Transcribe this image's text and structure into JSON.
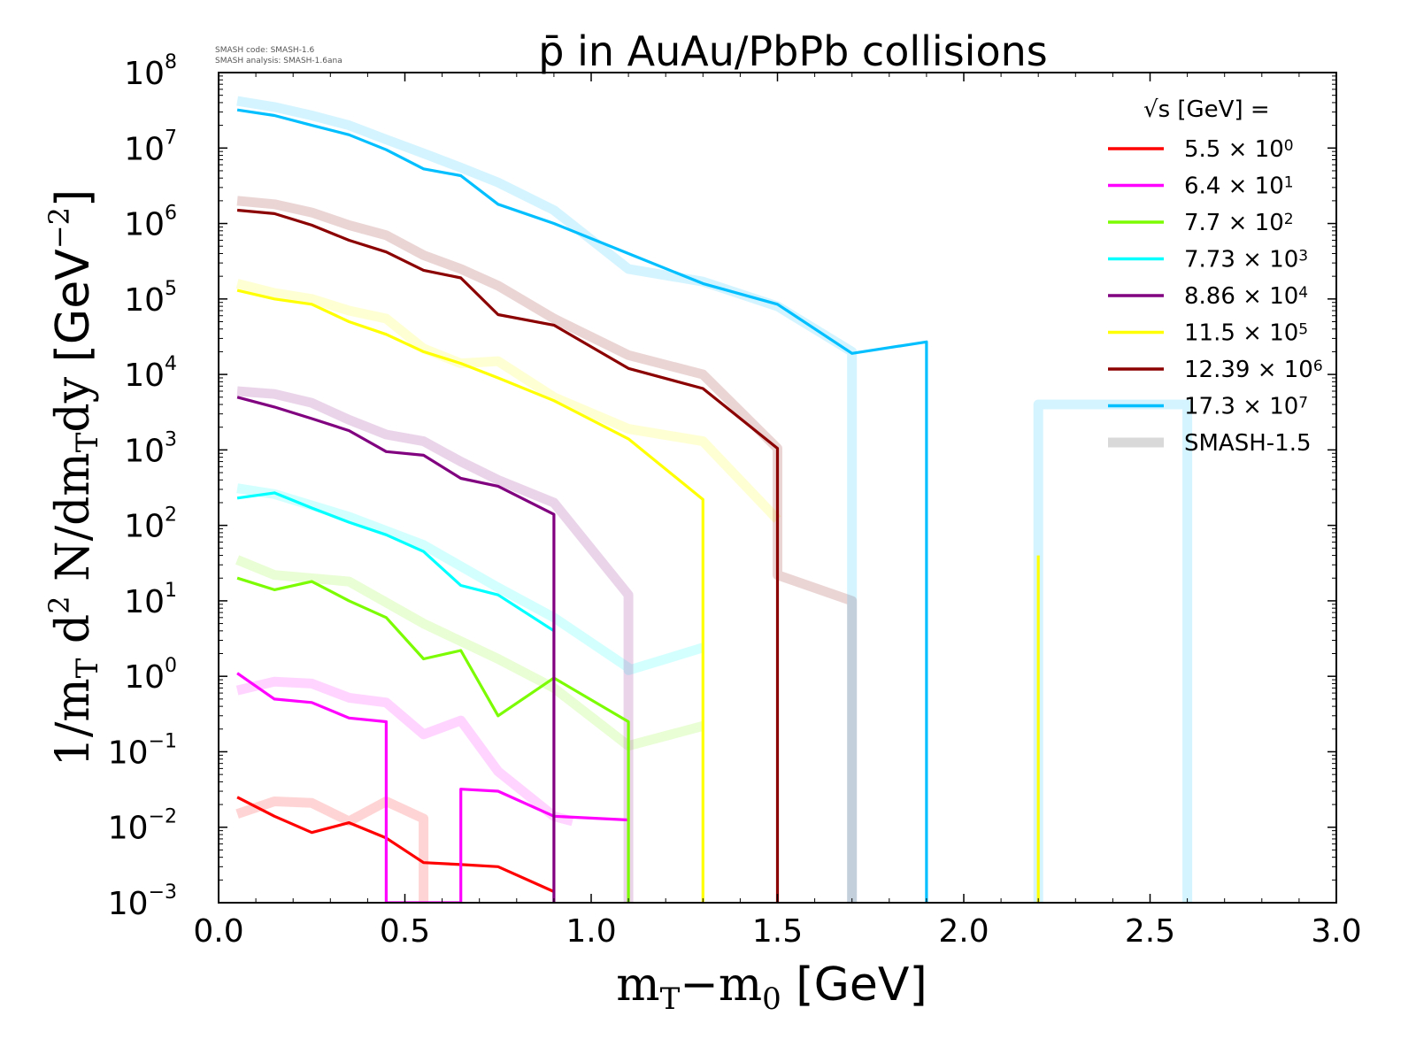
{
  "chart_data": {
    "type": "line",
    "title": "p̄ in AuAu/PbPb collisions",
    "credits": [
      "SMASH code:      SMASH-1.6",
      "SMASH analysis: SMASH-1.6ana"
    ],
    "xlabel": "mT−m0 [GeV]",
    "xlabel_parts": {
      "m": "m",
      "sub_t": "T",
      "minus": "−m",
      "sub_0": "0",
      "unit": " [GeV]"
    },
    "ylabel": "1/mT d2 N/dmTdy [GeV−2]",
    "ylabel_parts": {
      "a": "1/m",
      "sub_t1": "T",
      "b": " d",
      "sup_2": "2",
      "c": " N/dm",
      "sub_t2": "T",
      "d": "dy ",
      "unit": "[GeV",
      "sup_unit": "−2",
      "close": "]"
    },
    "xlim": [
      0.0,
      3.0
    ],
    "ylim": [
      0.001,
      100000000
    ],
    "yscale": "log",
    "x_ticks": [
      "0.0",
      "0.5",
      "1.0",
      "1.5",
      "2.0",
      "2.5",
      "3.0"
    ],
    "y_ticks": [
      {
        "base": "10",
        "exp": "8"
      },
      {
        "base": "10",
        "exp": "7"
      },
      {
        "base": "10",
        "exp": "6"
      },
      {
        "base": "10",
        "exp": "5"
      },
      {
        "base": "10",
        "exp": "4"
      },
      {
        "base": "10",
        "exp": "3"
      },
      {
        "base": "10",
        "exp": "2"
      },
      {
        "base": "10",
        "exp": "1"
      },
      {
        "base": "10",
        "exp": "0"
      },
      {
        "base": "10",
        "exp": "−1"
      },
      {
        "base": "10",
        "exp": "−2"
      },
      {
        "base": "10",
        "exp": "−3"
      }
    ],
    "legend_placement": "top-right",
    "legend_header": "√s  [GeV] =",
    "series": [
      {
        "name": "5.5 × 10",
        "exp": "0",
        "color": "#ff0000",
        "x": [
          0.05,
          0.15,
          0.25,
          0.35,
          0.45,
          0.55,
          0.65,
          0.75,
          0.9
        ],
        "y": [
          0.025,
          0.014,
          0.0085,
          0.0115,
          0.0072,
          0.0034,
          0.0032,
          0.003,
          0.0014
        ],
        "ref": {
          "x": [
            0.05,
            0.15,
            0.25,
            0.35,
            0.45,
            0.55,
            0.55
          ],
          "y": [
            0.015,
            0.022,
            0.021,
            0.012,
            0.022,
            0.013,
            0.0003
          ]
        }
      },
      {
        "name": "6.4 × 10",
        "exp": "1",
        "color": "#ff00ff",
        "x": [
          0.05,
          0.15,
          0.25,
          0.35,
          0.45,
          0.45,
          0.65,
          0.65,
          0.75,
          0.9,
          1.1
        ],
        "y": [
          1.1,
          0.5,
          0.45,
          0.28,
          0.25,
          0.0003,
          0.0003,
          0.032,
          0.03,
          0.014,
          0.0125
        ],
        "ref": {
          "x": [
            0.05,
            0.15,
            0.25,
            0.35,
            0.45,
            0.55,
            0.65,
            0.75,
            0.9,
            0.95
          ],
          "y": [
            0.65,
            0.85,
            0.8,
            0.52,
            0.45,
            0.17,
            0.26,
            0.055,
            0.014,
            0.012
          ]
        }
      },
      {
        "name": "7.7 × 10",
        "exp": "2",
        "color": "#7cfc00",
        "x": [
          0.05,
          0.15,
          0.25,
          0.35,
          0.45,
          0.55,
          0.65,
          0.75,
          0.9,
          1.1,
          1.1
        ],
        "y": [
          20,
          14,
          18,
          10,
          6,
          1.7,
          2.2,
          0.3,
          0.95,
          0.25,
          0.0003
        ],
        "ref": {
          "x": [
            0.05,
            0.15,
            0.35,
            0.55,
            0.75,
            0.9,
            1.1,
            1.3
          ],
          "y": [
            35,
            22,
            18,
            5,
            1.7,
            0.7,
            0.12,
            0.22
          ]
        }
      },
      {
        "name": "7.73 × 10",
        "exp": "3",
        "color": "#00ffff",
        "x": [
          0.05,
          0.15,
          0.25,
          0.35,
          0.45,
          0.55,
          0.65,
          0.75,
          0.9
        ],
        "y": [
          230,
          270,
          170,
          110,
          75,
          45,
          16,
          12,
          4
        ],
        "ref": {
          "x": [
            0.05,
            0.15,
            0.35,
            0.55,
            0.75,
            0.9,
            1.1,
            1.1,
            1.3
          ],
          "y": [
            310,
            260,
            130,
            55,
            15,
            6,
            1.3,
            1.2,
            2.4
          ]
        }
      },
      {
        "name": "8.86 × 10",
        "exp": "4",
        "color": "#800080",
        "x": [
          0.05,
          0.15,
          0.25,
          0.35,
          0.45,
          0.55,
          0.65,
          0.75,
          0.9,
          0.9
        ],
        "y": [
          5000,
          3700,
          2600,
          1800,
          950,
          850,
          420,
          330,
          140,
          0.0003
        ],
        "ref": {
          "x": [
            0.05,
            0.15,
            0.25,
            0.35,
            0.45,
            0.55,
            0.65,
            0.75,
            0.9,
            1.1,
            1.1
          ],
          "y": [
            6000,
            5500,
            4200,
            2500,
            1600,
            1300,
            700,
            400,
            200,
            12,
            0.0003
          ]
        }
      },
      {
        "name": "11.5 × 10",
        "exp": "5",
        "color": "#ffff00",
        "x": [
          0.05,
          0.15,
          0.25,
          0.35,
          0.45,
          0.55,
          0.65,
          0.75,
          0.9,
          1.1,
          1.3,
          1.3,
          1.3
        ],
        "y": [
          130000,
          100000,
          85000,
          50000,
          34000,
          20000,
          14000,
          9000,
          4500,
          1400,
          220,
          0.0003,
          20
        ],
        "ref": {
          "x": [
            0.05,
            0.15,
            0.25,
            0.35,
            0.45,
            0.55,
            0.65,
            0.75,
            0.9,
            1.1,
            1.3,
            1.5
          ],
          "y": [
            160000,
            120000,
            100000,
            70000,
            55000,
            22000,
            14000,
            15000,
            5000,
            1900,
            1300,
            120
          ]
        }
      },
      {
        "name": "12.39 × 10",
        "exp": "6",
        "color": "#8b0000",
        "x": [
          0.05,
          0.15,
          0.25,
          0.35,
          0.45,
          0.55,
          0.65,
          0.75,
          0.9,
          1.1,
          1.3,
          1.5,
          1.5
        ],
        "y": [
          1500000,
          1350000,
          950000,
          600000,
          420000,
          240000,
          190000,
          62000,
          45000,
          12000,
          6500,
          1050,
          0.0003
        ],
        "ref": {
          "x": [
            0.05,
            0.15,
            0.25,
            0.35,
            0.45,
            0.55,
            0.65,
            0.75,
            0.9,
            1.1,
            1.3,
            1.5,
            1.5,
            1.7,
            1.7
          ],
          "y": [
            2000000,
            1800000,
            1400000,
            950000,
            700000,
            380000,
            250000,
            150000,
            55000,
            18000,
            10000,
            1050,
            22,
            10,
            0.0003
          ]
        }
      },
      {
        "name": "17.3 × 10",
        "exp": "7",
        "color": "#00bfff",
        "x": [
          0.05,
          0.15,
          0.25,
          0.35,
          0.45,
          0.55,
          0.65,
          0.75,
          0.9,
          1.1,
          1.3,
          1.5,
          1.7,
          1.9,
          1.9
        ],
        "y": [
          32000000,
          27000000,
          20000000,
          15000000,
          9500000,
          5300000,
          4300000,
          1800000,
          1000000,
          400000,
          160000,
          85000,
          19000,
          27000,
          0.0003
        ],
        "ref": {
          "x": [
            0.05,
            0.15,
            0.25,
            0.35,
            0.45,
            0.55,
            0.65,
            0.75,
            0.9,
            1.1,
            1.3,
            1.5,
            1.7,
            1.7
          ],
          "y": [
            42000000,
            35000000,
            27000000,
            20000000,
            13000000,
            8500000,
            5500000,
            3500000,
            1500000,
            250000,
            170000,
            80000,
            20000,
            0.0003
          ]
        }
      }
    ],
    "reference": {
      "name": "SMASH-1.5",
      "color": "#d9d9d9",
      "extra": {
        "x": [
          2.2,
          2.2,
          2.6,
          2.6
        ],
        "y": [
          0.0003,
          4000,
          4000,
          0.0003
        ],
        "color": "#00bfff"
      }
    },
    "extra_spikes": [
      {
        "x": [
          2.2,
          2.2,
          2.2
        ],
        "y": [
          0.0003,
          40,
          0.0003
        ],
        "color": "#ffff00"
      }
    ]
  }
}
